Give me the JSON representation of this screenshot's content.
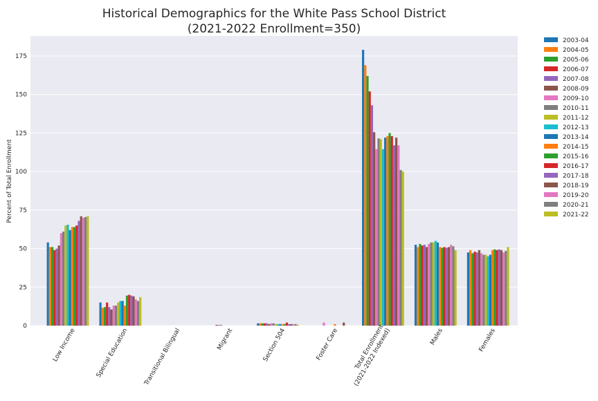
{
  "chart_data": {
    "type": "bar",
    "title_line1": "Historical Demographics for the White Pass School District",
    "title_line2": "(2021-2022 Enrollment=350)",
    "xlabel": "",
    "ylabel": "Percent of Total Enrollment",
    "ylim": [
      0,
      188
    ],
    "yticks": [
      0,
      25,
      50,
      75,
      100,
      125,
      150,
      175
    ],
    "grid": true,
    "legend_position": "outside-right",
    "categories": [
      "Low Income",
      "Special Education",
      "Transitional Bilingual",
      "Migrant",
      "Section 504",
      "Foster Care",
      "Total Enrollment\n(2021-2022 Indexed)",
      "Males",
      "Females"
    ],
    "series": [
      {
        "name": "2003-04",
        "color": "#1f77b4",
        "values": [
          54,
          15,
          0,
          0,
          1.5,
          0,
          179,
          52.5,
          47.5
        ]
      },
      {
        "name": "2004-05",
        "color": "#ff7f0e",
        "values": [
          51,
          11.5,
          0,
          0,
          1.5,
          0,
          169,
          51,
          49
        ]
      },
      {
        "name": "2005-06",
        "color": "#2ca02c",
        "values": [
          51,
          12,
          0,
          0,
          1.5,
          0,
          162,
          53,
          47
        ]
      },
      {
        "name": "2006-07",
        "color": "#d62728",
        "values": [
          49,
          15,
          0,
          0,
          1.5,
          0,
          152,
          52,
          48
        ]
      },
      {
        "name": "2007-08",
        "color": "#9467bd",
        "values": [
          50,
          12,
          0,
          0,
          1.5,
          0,
          143,
          52.5,
          47.5
        ]
      },
      {
        "name": "2008-09",
        "color": "#8c564b",
        "values": [
          52,
          10.5,
          0,
          0.5,
          1,
          0,
          125.5,
          51,
          49
        ]
      },
      {
        "name": "2009-10",
        "color": "#e377c2",
        "values": [
          60,
          13,
          0,
          0.5,
          1.5,
          2,
          114.5,
          53,
          47
        ]
      },
      {
        "name": "2010-11",
        "color": "#7f7f7f",
        "values": [
          61,
          13,
          0,
          0.5,
          1.5,
          0,
          121.5,
          54,
          46
        ]
      },
      {
        "name": "2011-12",
        "color": "#bcbd22",
        "values": [
          65,
          15,
          0,
          0,
          1,
          0,
          121,
          54,
          46
        ]
      },
      {
        "name": "2012-13",
        "color": "#17becf",
        "values": [
          65.5,
          16,
          0,
          0,
          1,
          0,
          114.5,
          55,
          45
        ]
      },
      {
        "name": "2013-14",
        "color": "#1f77b4",
        "values": [
          62,
          16,
          0,
          0,
          1,
          0,
          122,
          54,
          46
        ]
      },
      {
        "name": "2014-15",
        "color": "#ff7f0e",
        "values": [
          64,
          13,
          0,
          0,
          1,
          1,
          123,
          51,
          49
        ]
      },
      {
        "name": "2015-16",
        "color": "#2ca02c",
        "values": [
          64,
          19.5,
          0,
          0,
          1,
          0,
          125,
          50.5,
          49.5
        ]
      },
      {
        "name": "2016-17",
        "color": "#d62728",
        "values": [
          65,
          20,
          0,
          0,
          2,
          0,
          123,
          51,
          49
        ]
      },
      {
        "name": "2017-18",
        "color": "#9467bd",
        "values": [
          68,
          19.5,
          0,
          0,
          1,
          0,
          117,
          50.5,
          49.5
        ]
      },
      {
        "name": "2018-19",
        "color": "#8c564b",
        "values": [
          71,
          19,
          0,
          0,
          1,
          2,
          122,
          51,
          49
        ]
      },
      {
        "name": "2019-20",
        "color": "#e377c2",
        "values": [
          70,
          17,
          0,
          0,
          1,
          0,
          117,
          52.5,
          47.5
        ]
      },
      {
        "name": "2020-21",
        "color": "#7f7f7f",
        "values": [
          70.5,
          16,
          0,
          0,
          1,
          0,
          101,
          51.5,
          48.5
        ]
      },
      {
        "name": "2021-22",
        "color": "#bcbd22",
        "values": [
          71,
          18.5,
          0,
          0,
          0.5,
          0,
          100,
          49,
          51
        ]
      }
    ]
  }
}
